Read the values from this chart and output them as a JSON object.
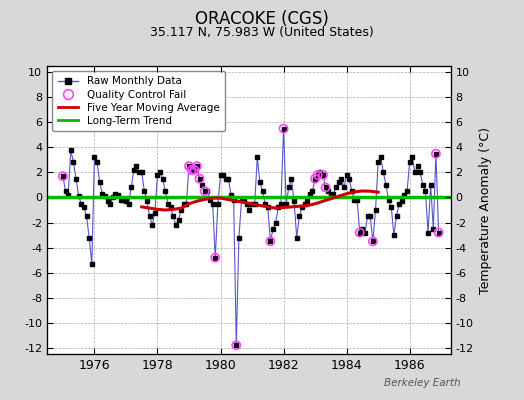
{
  "title": "ORACOKE (CGS)",
  "subtitle": "35.117 N, 75.983 W (United States)",
  "ylabel": "Temperature Anomaly (°C)",
  "watermark": "Berkeley Earth",
  "xlim": [
    1974.5,
    1987.3
  ],
  "ylim": [
    -12.5,
    10.5
  ],
  "yticks": [
    -12,
    -10,
    -8,
    -6,
    -4,
    -2,
    0,
    2,
    4,
    6,
    8,
    10
  ],
  "xticks": [
    1976,
    1978,
    1980,
    1982,
    1984,
    1986
  ],
  "background_color": "#d8d8d8",
  "plot_bg_color": "#ffffff",
  "raw_line_color": "#5555cc",
  "raw_marker_color": "#000000",
  "qc_marker_color": "#ff44ff",
  "moving_avg_color": "#cc0000",
  "trend_color": "#00bb00",
  "raw_data": [
    [
      1975.0,
      1.7
    ],
    [
      1975.083,
      0.5
    ],
    [
      1975.167,
      0.2
    ],
    [
      1975.25,
      3.8
    ],
    [
      1975.333,
      2.8
    ],
    [
      1975.417,
      1.5
    ],
    [
      1975.5,
      0.1
    ],
    [
      1975.583,
      -0.5
    ],
    [
      1975.667,
      -0.8
    ],
    [
      1975.75,
      -1.5
    ],
    [
      1975.833,
      -3.2
    ],
    [
      1975.917,
      -5.3
    ],
    [
      1976.0,
      3.2
    ],
    [
      1976.083,
      2.8
    ],
    [
      1976.167,
      1.2
    ],
    [
      1976.25,
      0.3
    ],
    [
      1976.333,
      0.1
    ],
    [
      1976.417,
      -0.3
    ],
    [
      1976.5,
      -0.5
    ],
    [
      1976.583,
      0.0
    ],
    [
      1976.667,
      0.3
    ],
    [
      1976.75,
      0.2
    ],
    [
      1976.833,
      -0.2
    ],
    [
      1976.917,
      -0.2
    ],
    [
      1977.0,
      -0.3
    ],
    [
      1977.083,
      -0.5
    ],
    [
      1977.167,
      0.8
    ],
    [
      1977.25,
      2.2
    ],
    [
      1977.333,
      2.5
    ],
    [
      1977.417,
      2.0
    ],
    [
      1977.5,
      2.0
    ],
    [
      1977.583,
      0.5
    ],
    [
      1977.667,
      -0.3
    ],
    [
      1977.75,
      -1.5
    ],
    [
      1977.833,
      -2.2
    ],
    [
      1977.917,
      -1.2
    ],
    [
      1978.0,
      1.8
    ],
    [
      1978.083,
      2.0
    ],
    [
      1978.167,
      1.5
    ],
    [
      1978.25,
      0.5
    ],
    [
      1978.333,
      -0.5
    ],
    [
      1978.417,
      -0.8
    ],
    [
      1978.5,
      -1.5
    ],
    [
      1978.583,
      -2.2
    ],
    [
      1978.667,
      -1.8
    ],
    [
      1978.75,
      -1.0
    ],
    [
      1978.833,
      -0.5
    ],
    [
      1978.917,
      -0.5
    ],
    [
      1979.0,
      2.5
    ],
    [
      1979.083,
      2.2
    ],
    [
      1979.167,
      2.2
    ],
    [
      1979.25,
      2.5
    ],
    [
      1979.333,
      1.5
    ],
    [
      1979.417,
      1.0
    ],
    [
      1979.5,
      0.5
    ],
    [
      1979.583,
      0.5
    ],
    [
      1979.667,
      -0.2
    ],
    [
      1979.75,
      -0.5
    ],
    [
      1979.833,
      -4.8
    ],
    [
      1979.917,
      -0.5
    ],
    [
      1980.0,
      1.8
    ],
    [
      1980.083,
      1.8
    ],
    [
      1980.167,
      1.5
    ],
    [
      1980.25,
      1.5
    ],
    [
      1980.333,
      0.2
    ],
    [
      1980.417,
      -0.2
    ],
    [
      1980.5,
      -11.8
    ],
    [
      1980.583,
      -3.2
    ],
    [
      1980.667,
      -0.2
    ],
    [
      1980.75,
      -0.2
    ],
    [
      1980.833,
      -0.5
    ],
    [
      1980.917,
      -1.0
    ],
    [
      1981.0,
      -0.5
    ],
    [
      1981.083,
      -0.5
    ],
    [
      1981.167,
      3.2
    ],
    [
      1981.25,
      1.2
    ],
    [
      1981.333,
      0.5
    ],
    [
      1981.417,
      -0.5
    ],
    [
      1981.5,
      -0.8
    ],
    [
      1981.583,
      -3.5
    ],
    [
      1981.667,
      -2.5
    ],
    [
      1981.75,
      -2.0
    ],
    [
      1981.833,
      -0.8
    ],
    [
      1981.917,
      -0.5
    ],
    [
      1982.0,
      5.5
    ],
    [
      1982.083,
      -0.5
    ],
    [
      1982.167,
      0.8
    ],
    [
      1982.25,
      1.5
    ],
    [
      1982.333,
      -0.3
    ],
    [
      1982.417,
      -3.2
    ],
    [
      1982.5,
      -1.5
    ],
    [
      1982.583,
      -0.8
    ],
    [
      1982.667,
      -0.5
    ],
    [
      1982.75,
      -0.3
    ],
    [
      1982.833,
      0.3
    ],
    [
      1982.917,
      0.5
    ],
    [
      1983.0,
      1.5
    ],
    [
      1983.083,
      1.8
    ],
    [
      1983.167,
      2.0
    ],
    [
      1983.25,
      1.8
    ],
    [
      1983.333,
      0.8
    ],
    [
      1983.417,
      0.5
    ],
    [
      1983.5,
      0.2
    ],
    [
      1983.583,
      0.3
    ],
    [
      1983.667,
      0.8
    ],
    [
      1983.75,
      1.2
    ],
    [
      1983.833,
      1.5
    ],
    [
      1983.917,
      0.8
    ],
    [
      1984.0,
      1.8
    ],
    [
      1984.083,
      1.5
    ],
    [
      1984.167,
      0.5
    ],
    [
      1984.25,
      -0.2
    ],
    [
      1984.333,
      -0.2
    ],
    [
      1984.417,
      -2.8
    ],
    [
      1984.5,
      -2.5
    ],
    [
      1984.583,
      -2.8
    ],
    [
      1984.667,
      -1.5
    ],
    [
      1984.75,
      -1.5
    ],
    [
      1984.833,
      -3.5
    ],
    [
      1984.917,
      -1.0
    ],
    [
      1985.0,
      2.8
    ],
    [
      1985.083,
      3.2
    ],
    [
      1985.167,
      2.0
    ],
    [
      1985.25,
      1.0
    ],
    [
      1985.333,
      -0.2
    ],
    [
      1985.417,
      -0.8
    ],
    [
      1985.5,
      -3.0
    ],
    [
      1985.583,
      -1.5
    ],
    [
      1985.667,
      -0.5
    ],
    [
      1985.75,
      -0.3
    ],
    [
      1985.833,
      0.2
    ],
    [
      1985.917,
      0.5
    ],
    [
      1986.0,
      2.8
    ],
    [
      1986.083,
      3.2
    ],
    [
      1986.167,
      2.0
    ],
    [
      1986.25,
      2.5
    ],
    [
      1986.333,
      2.0
    ],
    [
      1986.417,
      1.0
    ],
    [
      1986.5,
      0.5
    ],
    [
      1986.583,
      -2.8
    ],
    [
      1986.667,
      1.0
    ],
    [
      1986.75,
      -2.5
    ],
    [
      1986.833,
      3.5
    ],
    [
      1986.917,
      -2.8
    ]
  ],
  "qc_fail_points": [
    [
      1975.0,
      1.7
    ],
    [
      1979.833,
      -4.8
    ],
    [
      1979.0,
      2.5
    ],
    [
      1979.083,
      2.2
    ],
    [
      1979.167,
      2.2
    ],
    [
      1979.25,
      2.5
    ],
    [
      1979.333,
      1.5
    ],
    [
      1979.5,
      0.5
    ],
    [
      1980.5,
      -11.8
    ],
    [
      1981.583,
      -3.5
    ],
    [
      1982.0,
      5.5
    ],
    [
      1983.0,
      1.5
    ],
    [
      1983.083,
      1.8
    ],
    [
      1983.25,
      1.8
    ],
    [
      1983.333,
      0.8
    ],
    [
      1984.417,
      -2.8
    ],
    [
      1984.833,
      -3.5
    ],
    [
      1986.833,
      3.5
    ],
    [
      1986.917,
      -2.8
    ]
  ],
  "moving_avg": [
    [
      1977.5,
      -0.75
    ],
    [
      1977.75,
      -0.85
    ],
    [
      1978.0,
      -0.95
    ],
    [
      1978.25,
      -1.0
    ],
    [
      1978.5,
      -0.95
    ],
    [
      1978.75,
      -0.85
    ],
    [
      1979.0,
      -0.5
    ],
    [
      1979.25,
      -0.3
    ],
    [
      1979.5,
      -0.15
    ],
    [
      1979.75,
      -0.05
    ],
    [
      1980.0,
      -0.05
    ],
    [
      1981.5,
      -0.75
    ],
    [
      1981.75,
      -0.85
    ],
    [
      1982.0,
      -0.8
    ],
    [
      1982.25,
      -0.75
    ],
    [
      1982.5,
      -0.7
    ],
    [
      1982.75,
      -0.65
    ],
    [
      1983.0,
      -0.5
    ],
    [
      1983.25,
      -0.3
    ],
    [
      1983.5,
      -0.1
    ],
    [
      1983.75,
      0.1
    ],
    [
      1984.0,
      0.3
    ],
    [
      1984.25,
      0.45
    ],
    [
      1984.5,
      0.52
    ],
    [
      1984.75,
      0.5
    ],
    [
      1985.0,
      0.42
    ]
  ],
  "trend_y": 0.0
}
